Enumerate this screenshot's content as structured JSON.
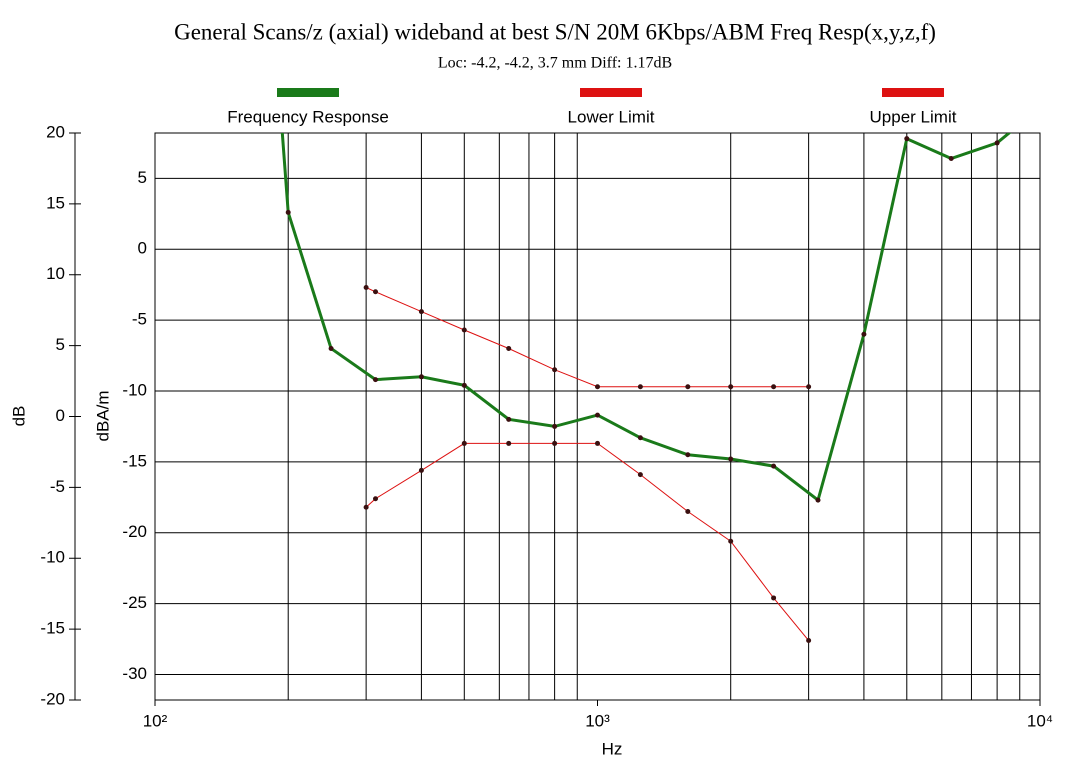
{
  "chart_data": {
    "type": "line",
    "title": "General Scans/z (axial) wideband at best S/N 20M 6Kbps/ABM Freq Resp(x,y,z,f)",
    "subtitle": "Loc: -4.2, -4.2, 3.7 mm Diff: 1.17dB",
    "xlabel": "Hz",
    "ylabel": "dB",
    "y2label": "dBA/m",
    "xscale": "log",
    "xlim": [
      100,
      10000
    ],
    "xticks": [
      {
        "value": 100,
        "label": "10²"
      },
      {
        "value": 1000,
        "label": "10³"
      },
      {
        "value": 10000,
        "label": "10⁴"
      }
    ],
    "xminor": [
      200,
      300,
      400,
      500,
      600,
      700,
      800,
      900,
      2000,
      3000,
      4000,
      5000,
      6000,
      7000,
      8000,
      9000
    ],
    "ylim": [
      -20,
      20
    ],
    "yticks": [
      -20,
      -15,
      -10,
      -5,
      0,
      5,
      10,
      15,
      20
    ],
    "y2lim": [
      -31.8,
      8.2
    ],
    "y2ticks": [
      -30,
      -25,
      -20,
      -15,
      -10,
      -5,
      0,
      5
    ],
    "grid": true,
    "legend": "top",
    "series": [
      {
        "name": "Frequency Response",
        "color": "#1a7a1a",
        "axis": "y2",
        "x": [
          190,
          200,
          250,
          315,
          400,
          500,
          630,
          800,
          1000,
          1250,
          1600,
          2000,
          2500,
          3150,
          4000,
          5000,
          6300,
          8000,
          10000
        ],
        "values": [
          12,
          2.6,
          -7.0,
          -9.2,
          -9.0,
          -9.6,
          -12.0,
          -12.5,
          -11.7,
          -13.3,
          -14.5,
          -14.8,
          -15.3,
          -17.7,
          -6.0,
          7.8,
          6.4,
          7.5,
          10
        ]
      },
      {
        "name": "Lower Limit",
        "color": "#dd1111",
        "axis": "y2",
        "x": [
          300,
          315,
          400,
          500,
          630,
          800,
          1000,
          1250,
          1600,
          2000,
          2500,
          3000
        ],
        "values": [
          -18.2,
          -17.6,
          -15.6,
          -13.7,
          -13.7,
          -13.7,
          -13.7,
          -15.9,
          -18.5,
          -20.6,
          -24.6,
          -27.6
        ]
      },
      {
        "name": "Upper Limit",
        "color": "#dd1111",
        "axis": "y2",
        "x": [
          300,
          315,
          400,
          500,
          630,
          800,
          1000,
          1250,
          1600,
          2000,
          2500,
          3000
        ],
        "values": [
          -2.7,
          -3.0,
          -4.4,
          -5.7,
          -7.0,
          -8.5,
          -9.7,
          -9.7,
          -9.7,
          -9.7,
          -9.7,
          -9.7
        ]
      }
    ]
  }
}
